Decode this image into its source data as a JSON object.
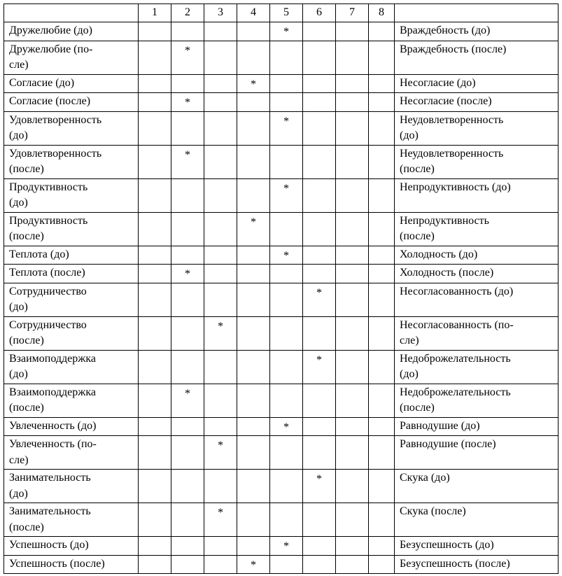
{
  "table": {
    "header": [
      "",
      "1",
      "2",
      "3",
      "4",
      "5",
      "6",
      "7",
      "8",
      ""
    ],
    "marker": "*",
    "rows": [
      {
        "left": "Дружелюбие (до)",
        "mark": 5,
        "right": "Враждебность (до)"
      },
      {
        "left": "Дружелюбие (по-\nсле)",
        "mark": 2,
        "right": "Враждебность (после)"
      },
      {
        "left": "Согласие (до)",
        "mark": 4,
        "right": "Несогласие (до)"
      },
      {
        "left": "Согласие (после)",
        "mark": 2,
        "right": "Несогласие (после)"
      },
      {
        "left": "Удовлетворенность\n(до)",
        "mark": 5,
        "right": "Неудовлетворенность\n(до)"
      },
      {
        "left": "Удовлетворенность\n(после)",
        "mark": 2,
        "right": "Неудовлетворенность\n(после)"
      },
      {
        "left": "Продуктивность\n(до)",
        "mark": 5,
        "right": "Непродуктивность (до)"
      },
      {
        "left": "Продуктивность\n(после)",
        "mark": 4,
        "right": "Непродуктивность\n(после)"
      },
      {
        "left": "Теплота (до)",
        "mark": 5,
        "right": "Холодность (до)"
      },
      {
        "left": "Теплота (после)",
        "mark": 2,
        "right": "Холодность (после)"
      },
      {
        "left": "Сотрудничество\n(до)",
        "mark": 6,
        "right": "Несогласованность (до)"
      },
      {
        "left": "Сотрудничество\n(после)",
        "mark": 3,
        "right": "Несогласованность (по-\nсле)"
      },
      {
        "left": "Взаимоподдержка\n(до)",
        "mark": 6,
        "right": "Недоброжелательность\n(до)"
      },
      {
        "left": "Взаимоподдержка\n(после)",
        "mark": 2,
        "right": "Недоброжелательность\n(после)"
      },
      {
        "left": "Увлеченность (до)",
        "mark": 5,
        "right": "Равнодушие (до)"
      },
      {
        "left": "Увлеченность (по-\nсле)",
        "mark": 3,
        "right": "Равнодушие (после)"
      },
      {
        "left": "Занимательность\n(до)",
        "mark": 6,
        "right": "Скука (до)"
      },
      {
        "left": "Занимательность\n(после)",
        "mark": 3,
        "right": "Скука (после)"
      },
      {
        "left": "Успешность (до)",
        "mark": 5,
        "right": "Безуспешность (до)"
      },
      {
        "left": "Успешность (после)",
        "mark": 4,
        "right": "Безуспешность (после)"
      }
    ]
  }
}
